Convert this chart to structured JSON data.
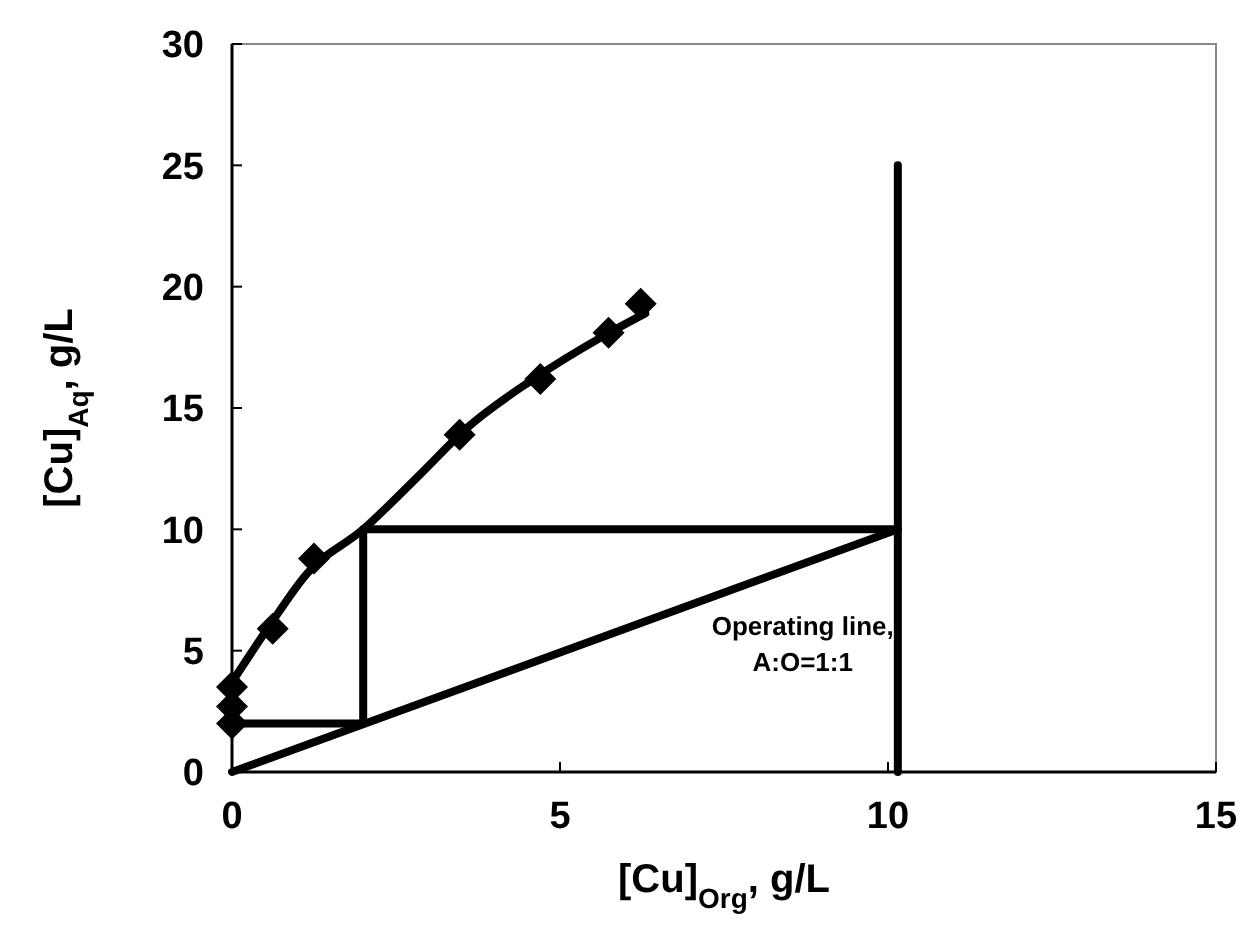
{
  "chart_data": {
    "type": "line",
    "xlabel": "[Cu]$_{Org}$, g/L",
    "ylabel": "[Cu]$_{Aq}$, g/L",
    "xlim": [
      0,
      15
    ],
    "xticks": [
      0,
      5,
      10,
      15
    ],
    "ylim": [
      0,
      30
    ],
    "yticks": [
      0,
      5,
      10,
      15,
      20,
      25,
      30
    ],
    "grid": false,
    "series": [
      {
        "type": "scatter",
        "marker": "diamond",
        "color": "#000000",
        "x": [
          0,
          0,
          0,
          0.62,
          1.25,
          3.47,
          4.7,
          5.74,
          6.23
        ],
        "values": [
          3.5,
          2.7,
          2.0,
          5.9,
          8.8,
          13.9,
          16.2,
          18.1,
          19.3
        ]
      },
      {
        "marker": "none",
        "color": "#000000",
        "x": [
          0,
          0.54,
          1.15,
          2,
          2.88,
          3.59,
          4.6,
          5.62,
          6.3
        ],
        "values": [
          3.7,
          5.9,
          8.2,
          10.0,
          12.3,
          14.2,
          16.2,
          17.9,
          18.9
        ]
      },
      {
        "marker": "none",
        "color": "#000000",
        "x": [
          0,
          10.15
        ],
        "values": [
          0,
          10
        ]
      },
      {
        "marker": "none",
        "color": "#000000",
        "x": [
          0,
          2,
          2,
          10.15
        ],
        "values": [
          2,
          2,
          10,
          10
        ]
      },
      {
        "marker": "none",
        "color": "#000000",
        "x": [
          10.15,
          10.15
        ],
        "values": [
          0,
          25
        ]
      }
    ],
    "annotations": [
      "Operating line,\nA:O=1:1"
    ]
  }
}
